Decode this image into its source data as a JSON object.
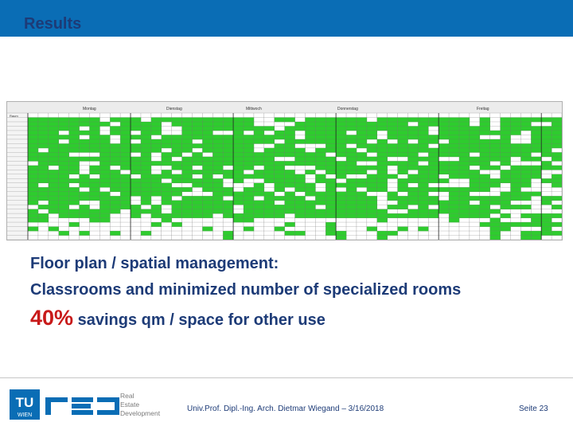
{
  "header": {
    "title": "Results"
  },
  "schedule": {
    "days": [
      "Montag",
      "Dienstag",
      "Mittwoch",
      "Donnerstag",
      "Freitag"
    ],
    "first_row_label": "Raum",
    "colors": {
      "occupied": "#2ecc2e",
      "free": "#ffffff",
      "grid": "#777777",
      "header_bg": "#ececec"
    }
  },
  "body": {
    "line1": "Floor plan / spatial management:",
    "line2": "Classrooms and minimized number of specialized rooms",
    "line3_pct": "40%",
    "line3_rest": " savings qm / space for other use",
    "accent_color": "#c81a1a"
  },
  "footer": {
    "logo_tu": "TU",
    "logo_wien": "WIEN",
    "logo_red": "RED",
    "logo_lines": [
      "Real",
      "Estate",
      "Development"
    ],
    "author": "Univ.Prof. Dipl.-Ing. Arch. Dietmar Wiegand – 3/16/2018",
    "page": "Seite 23"
  }
}
